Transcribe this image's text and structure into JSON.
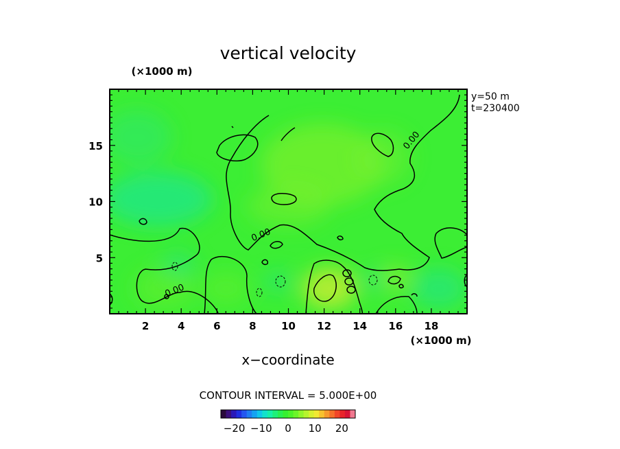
{
  "chart_data": {
    "type": "heatmap",
    "title": "vertical velocity",
    "xlabel": "x−coordinate",
    "x_unit": "(×1000 m)",
    "y_unit": "(×1000 m)",
    "xlim": [
      0,
      20
    ],
    "ylim": [
      0,
      20
    ],
    "x_ticks": [
      2,
      4,
      6,
      8,
      10,
      12,
      14,
      16,
      18
    ],
    "x_tick_labels": [
      "2",
      "4",
      "6",
      "8",
      "10",
      "12",
      "14",
      "16",
      "18"
    ],
    "y_ticks": [
      5,
      10,
      15
    ],
    "y_tick_labels": [
      "5",
      "10",
      "15"
    ],
    "info": [
      "y=50  m",
      "t=230400"
    ],
    "contour_interval_text": "CONTOUR INTERVAL = 5.000E+00",
    "contour_labels": [
      "0.00",
      "0.00",
      "0.00"
    ],
    "colorbar": {
      "range": [
        -25,
        25
      ],
      "tick_values": [
        -20,
        -10,
        0,
        10,
        20
      ],
      "tick_labels": [
        "−20",
        "−10",
        "0",
        "10",
        "20"
      ],
      "colors": [
        "#2a0a3a",
        "#3a0f7a",
        "#2a18b8",
        "#1f2ee0",
        "#2356f0",
        "#1f7cf2",
        "#14a2f2",
        "#10c6ea",
        "#12e2cc",
        "#16f0a8",
        "#1ef07a",
        "#28f050",
        "#36f030",
        "#4cf22a",
        "#6cf42a",
        "#92f52c",
        "#b6f42e",
        "#d8f030",
        "#f2e832",
        "#f8c22e",
        "#f89a2c",
        "#f6702a",
        "#f24628",
        "#e8242a",
        "#d81436",
        "#f07890"
      ]
    }
  }
}
